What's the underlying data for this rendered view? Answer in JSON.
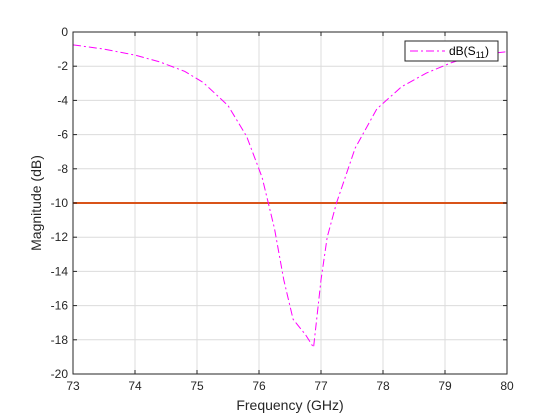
{
  "chart_data": {
    "type": "line",
    "xlabel": "Frequency (GHz)",
    "ylabel": "Magnitude (dB)",
    "xlim": [
      73,
      80
    ],
    "ylim": [
      -20,
      0
    ],
    "xticks": [
      73,
      74,
      75,
      76,
      77,
      78,
      79,
      80
    ],
    "yticks": [
      0,
      -2,
      -4,
      -6,
      -8,
      -10,
      -12,
      -14,
      -16,
      -18,
      -20
    ],
    "grid": true,
    "legend_position": "top-right",
    "series": [
      {
        "name_base": "dB(S",
        "name_sub": "11",
        "name_end": ")",
        "color": "#ff00ff",
        "line_style": "dash-dot",
        "x": [
          73.0,
          73.5,
          74.0,
          74.4,
          74.8,
          75.1,
          75.5,
          75.8,
          76.05,
          76.25,
          76.4,
          76.55,
          76.75,
          76.88,
          77.0,
          77.1,
          77.25,
          77.55,
          77.9,
          78.3,
          78.7,
          79.1,
          79.5,
          80.0
        ],
        "y": [
          -0.75,
          -1.0,
          -1.35,
          -1.75,
          -2.3,
          -2.95,
          -4.3,
          -6.1,
          -8.5,
          -11.5,
          -14.5,
          -16.8,
          -17.7,
          -18.45,
          -14.5,
          -12.0,
          -10.0,
          -6.8,
          -4.5,
          -3.2,
          -2.4,
          -1.8,
          -1.35,
          -1.15
        ]
      },
      {
        "color": "#d95319",
        "line_style": "solid",
        "x": [
          73,
          80
        ],
        "y": [
          -10,
          -10
        ]
      }
    ]
  }
}
